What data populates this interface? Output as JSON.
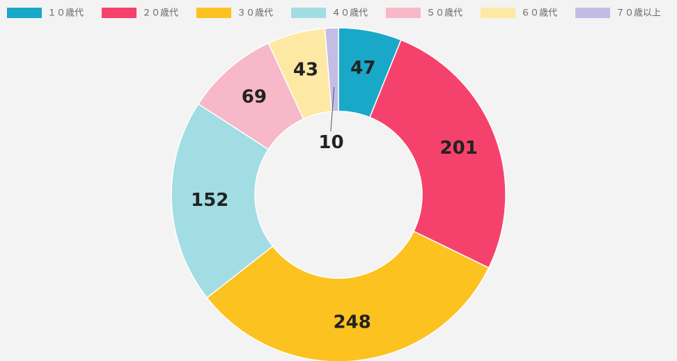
{
  "chart_data": {
    "type": "donut",
    "categories": [
      "１０歳代",
      "２０歳代",
      "３０歳代",
      "４０歳代",
      "５０歳代",
      "６０歳代",
      "７０歳以上"
    ],
    "values": [
      47,
      201,
      248,
      152,
      69,
      43,
      10
    ],
    "colors": [
      "#1aa8c8",
      "#f5426c",
      "#fcc21f",
      "#a2dde3",
      "#f7b8c9",
      "#fde9a4",
      "#c3bde6"
    ],
    "legend": "top"
  }
}
